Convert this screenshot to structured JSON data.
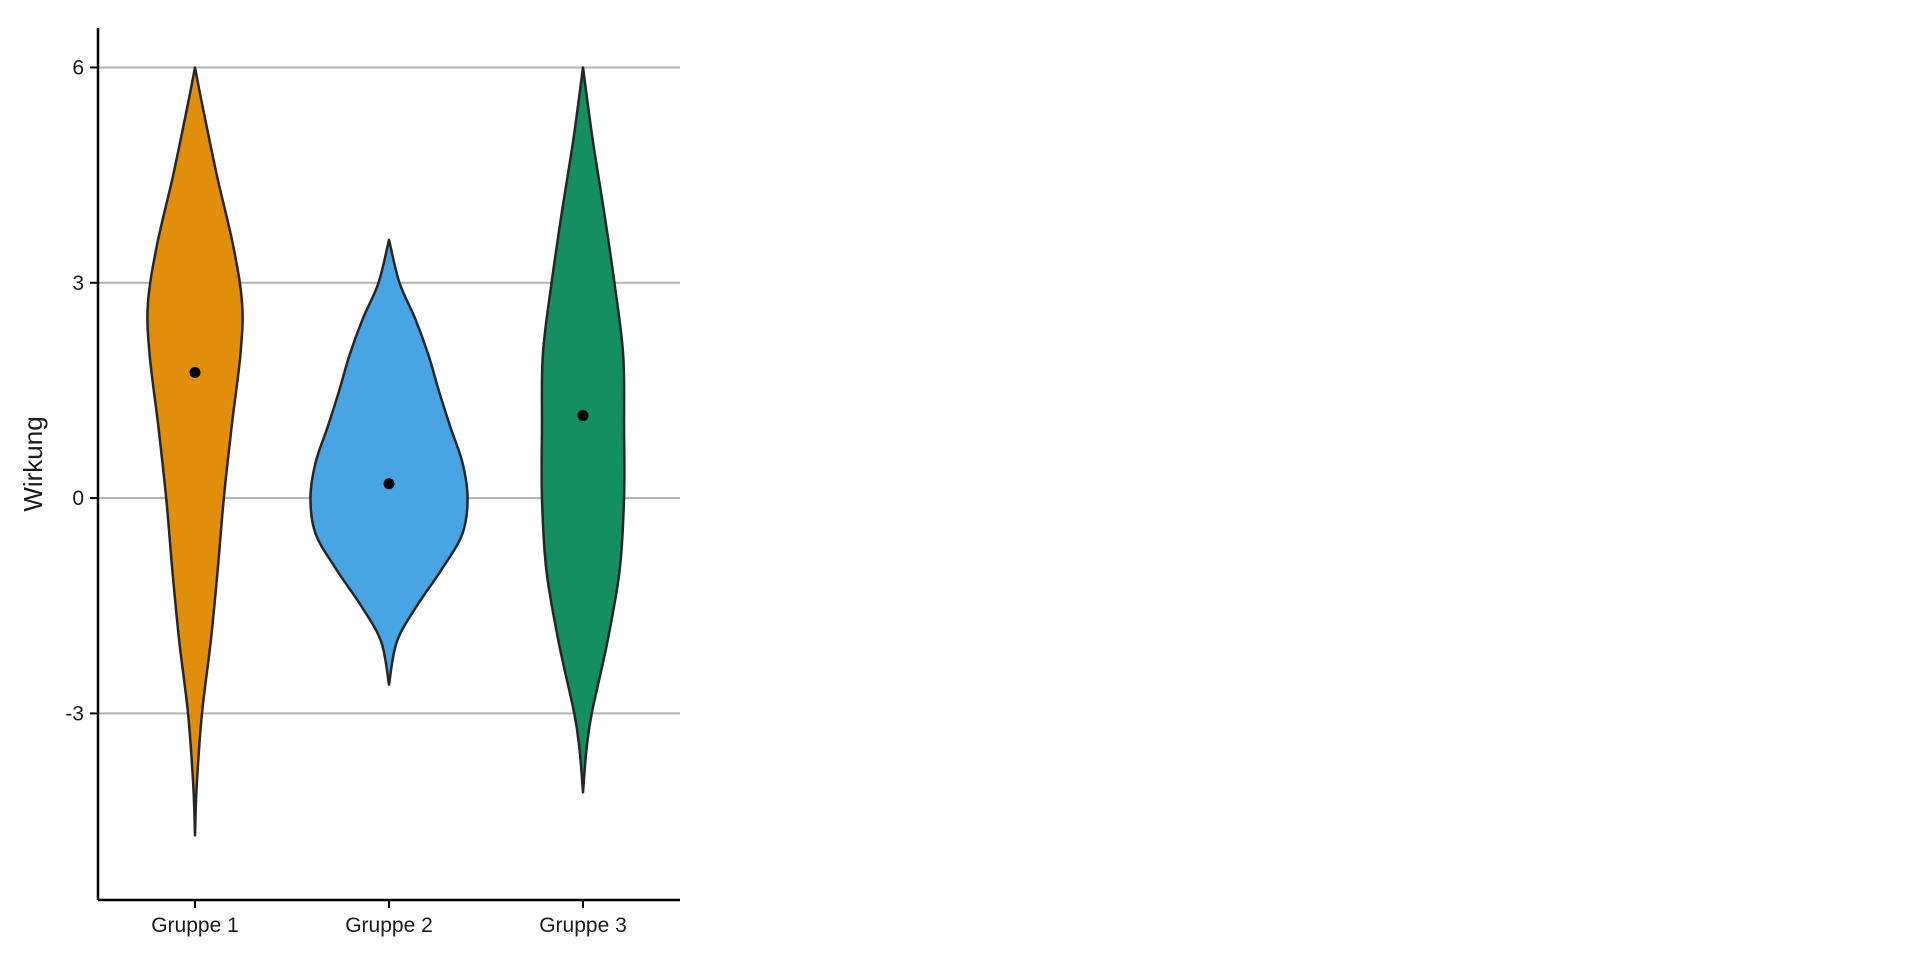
{
  "chart_data": {
    "type": "violin",
    "title": "",
    "xlabel": "",
    "ylabel": "Wirkung",
    "ylim": [
      -5.6,
      6.55
    ],
    "yticks": [
      -3,
      0,
      3,
      6
    ],
    "ytick_labels": [
      "-3",
      "0",
      "3",
      "6"
    ],
    "grid": "horizontal",
    "legend": "none",
    "categories": [
      "Gruppe 1",
      "Gruppe 2",
      "Gruppe 3"
    ],
    "series": [
      {
        "category": "Gruppe 1",
        "color": "#E08E0B",
        "min": -4.7,
        "max": 6.0,
        "mean": 1.75,
        "density": [
          [
            -4.7,
            0.0
          ],
          [
            -4.0,
            0.02
          ],
          [
            -3.0,
            0.08
          ],
          [
            -2.0,
            0.18
          ],
          [
            -1.0,
            0.26
          ],
          [
            0.0,
            0.33
          ],
          [
            1.0,
            0.42
          ],
          [
            2.0,
            0.52
          ],
          [
            2.7,
            0.54
          ],
          [
            3.5,
            0.44
          ],
          [
            4.5,
            0.25
          ],
          [
            5.5,
            0.08
          ],
          [
            6.0,
            0.0
          ]
        ]
      },
      {
        "category": "Gruppe 2",
        "color": "#49A4E3",
        "min": -2.6,
        "max": 3.6,
        "mean": 0.2,
        "density": [
          [
            -2.6,
            0.0
          ],
          [
            -2.0,
            0.09
          ],
          [
            -1.5,
            0.32
          ],
          [
            -1.0,
            0.6
          ],
          [
            -0.5,
            0.84
          ],
          [
            0.0,
            0.9
          ],
          [
            0.5,
            0.84
          ],
          [
            1.0,
            0.7
          ],
          [
            1.5,
            0.57
          ],
          [
            2.0,
            0.45
          ],
          [
            2.5,
            0.3
          ],
          [
            3.0,
            0.12
          ],
          [
            3.6,
            0.0
          ]
        ]
      },
      {
        "category": "Gruppe 3",
        "color": "#158E60",
        "min": -4.1,
        "max": 6.0,
        "mean": 1.15,
        "density": [
          [
            -4.1,
            0.0
          ],
          [
            -3.5,
            0.04
          ],
          [
            -3.0,
            0.1
          ],
          [
            -2.0,
            0.28
          ],
          [
            -1.0,
            0.42
          ],
          [
            0.0,
            0.47
          ],
          [
            1.0,
            0.47
          ],
          [
            2.0,
            0.46
          ],
          [
            3.0,
            0.36
          ],
          [
            4.0,
            0.24
          ],
          [
            5.0,
            0.11
          ],
          [
            6.0,
            0.0
          ]
        ]
      }
    ]
  }
}
